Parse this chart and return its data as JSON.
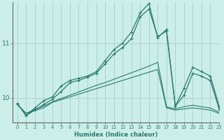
{
  "background_color": "#cceee8",
  "grid_color": "#aad4ce",
  "line_color": "#2a7a70",
  "xlabel": "Humidex (Indice chaleur)",
  "x_ticks": [
    0,
    1,
    2,
    3,
    4,
    5,
    6,
    7,
    8,
    9,
    10,
    11,
    12,
    13,
    14,
    15,
    16,
    17,
    18,
    19,
    20,
    21,
    22,
    23
  ],
  "yticks": [
    10,
    11
  ],
  "ylim": [
    9.55,
    11.75
  ],
  "xlim": [
    -0.5,
    23
  ],
  "series_flat1": [
    9.88,
    9.72,
    9.77,
    9.82,
    9.92,
    9.97,
    10.02,
    10.07,
    10.12,
    10.17,
    10.22,
    10.27,
    10.32,
    10.37,
    10.42,
    10.47,
    10.52,
    9.82,
    9.78,
    9.8,
    9.82,
    9.8,
    9.78,
    9.72
  ],
  "series_flat2": [
    9.88,
    9.72,
    9.79,
    9.85,
    9.93,
    9.99,
    10.05,
    10.11,
    10.17,
    10.23,
    10.28,
    10.34,
    10.4,
    10.46,
    10.52,
    10.58,
    10.65,
    9.84,
    9.8,
    9.84,
    9.87,
    9.84,
    9.82,
    9.74
  ],
  "series_marked1": [
    9.9,
    9.68,
    9.78,
    9.88,
    9.98,
    10.12,
    10.28,
    10.32,
    10.38,
    10.45,
    10.62,
    10.8,
    10.92,
    11.08,
    11.48,
    11.62,
    11.12,
    11.22,
    9.85,
    10.18,
    10.56,
    10.48,
    10.4,
    9.85
  ],
  "series_marked2": [
    9.9,
    9.68,
    9.82,
    9.95,
    10.02,
    10.22,
    10.32,
    10.36,
    10.4,
    10.48,
    10.68,
    10.88,
    11.0,
    11.2,
    11.55,
    11.72,
    11.1,
    11.25,
    9.85,
    10.05,
    10.45,
    10.4,
    10.32,
    9.8
  ]
}
